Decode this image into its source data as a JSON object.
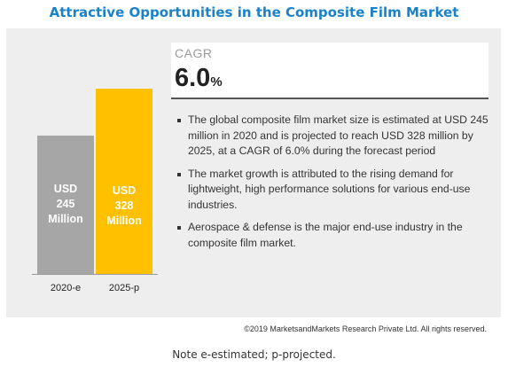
{
  "title": "Attractive Opportunities in the Composite Film Market",
  "cagr": {
    "label": "CAGR",
    "value": "6.0",
    "unit": "%"
  },
  "bullets": [
    "The global composite film market size is estimated at USD 245 million in 2020 and is projected to reach USD 328 million by 2025, at a CAGR of 6.0% during the forecast period",
    "The market growth is attributed to the rising demand for lightweight, high performance solutions for various end-use industries.",
    "Aerospace & defense is the major end-use industry in the composite film market."
  ],
  "copyright": "©2019 MarketsandMarkets Research Private Ltd. All rights reserved.",
  "note": "Note e-estimated; p-projected.",
  "colors": {
    "title": "#1a82c8",
    "bar_2020": "#a6a6a6",
    "bar_2025": "#ffc000",
    "panel": "#eeeeee"
  },
  "chart_data": {
    "type": "bar",
    "categories": [
      "2020-e",
      "2025-p"
    ],
    "values": [
      245,
      328
    ],
    "bar_labels": [
      [
        "USD",
        "245",
        "Million"
      ],
      [
        "USD",
        "328",
        "Million"
      ]
    ],
    "unit": "USD Million",
    "colors": [
      "#a6a6a6",
      "#ffc000"
    ]
  }
}
